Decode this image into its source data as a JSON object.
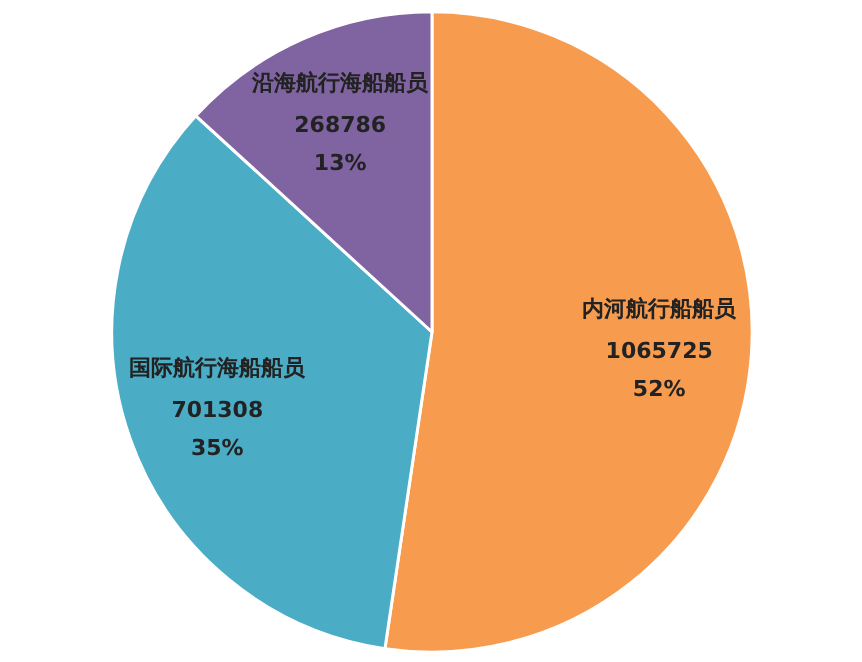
{
  "chart_data": {
    "type": "pie",
    "categories": [
      "内河航行船船员",
      "国际航行海船船员",
      "沿海航行海船船员"
    ],
    "values": [
      1065725,
      701308,
      268786
    ],
    "colors": [
      "#f79b4f",
      "#4bacc6",
      "#8064a2"
    ],
    "value_labels": [
      "1065725\n52%",
      "701308\n35%",
      "268786\n13%"
    ]
  }
}
